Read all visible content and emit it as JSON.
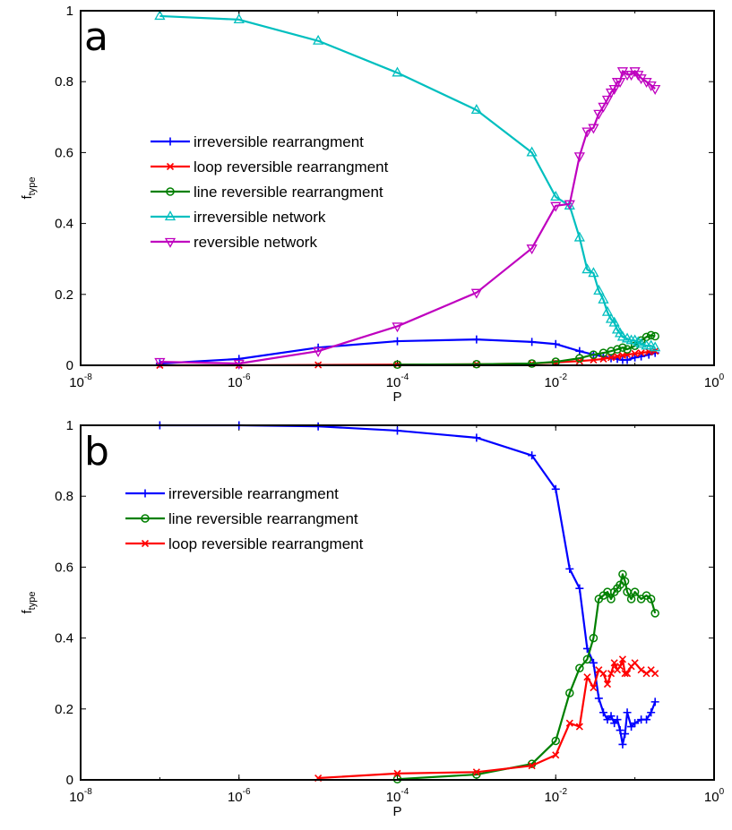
{
  "chart_data": [
    {
      "type": "line",
      "panel_label": "a",
      "xlabel": "P",
      "ylabel": "f",
      "ylabel_sub": "type",
      "xscale": "log",
      "xlim": [
        1e-08,
        1
      ],
      "ylim": [
        0,
        1
      ],
      "x_ticks": [
        {
          "base": "10",
          "exp": "-8"
        },
        {
          "base": "10",
          "exp": "-6"
        },
        {
          "base": "10",
          "exp": "-4"
        },
        {
          "base": "10",
          "exp": "-2"
        },
        {
          "base": "10",
          "exp": "0"
        }
      ],
      "y_ticks": [
        "0",
        "0.2",
        "0.4",
        "0.6",
        "0.8",
        "1"
      ],
      "legend_position": "center-left",
      "series": [
        {
          "name": "irreversible rearrangment",
          "color": "#0000ff",
          "marker": "plus",
          "x": [
            1e-07,
            1e-06,
            1e-05,
            0.0001,
            0.001,
            0.005,
            0.01,
            0.02,
            0.03,
            0.04,
            0.05,
            0.06,
            0.07,
            0.08,
            0.1,
            0.12,
            0.15,
            0.18
          ],
          "y": [
            0.005,
            0.018,
            0.05,
            0.068,
            0.073,
            0.066,
            0.06,
            0.04,
            0.03,
            0.025,
            0.02,
            0.018,
            0.015,
            0.015,
            0.022,
            0.025,
            0.03,
            0.035
          ]
        },
        {
          "name": "loop reversible rearrangment",
          "color": "#ff0000",
          "marker": "x",
          "x": [
            1e-07,
            1e-06,
            1e-05,
            0.0001,
            0.001,
            0.005,
            0.01,
            0.02,
            0.03,
            0.04,
            0.05,
            0.06,
            0.07,
            0.08,
            0.1,
            0.12,
            0.15,
            0.18
          ],
          "y": [
            0.0,
            0.0,
            0.001,
            0.002,
            0.003,
            0.005,
            0.008,
            0.012,
            0.015,
            0.018,
            0.022,
            0.025,
            0.028,
            0.03,
            0.033,
            0.035,
            0.038,
            0.04
          ]
        },
        {
          "name": "line reversible rearrangment",
          "color": "#008000",
          "marker": "circle",
          "x": [
            0.0001,
            0.001,
            0.005,
            0.01,
            0.02,
            0.03,
            0.04,
            0.05,
            0.06,
            0.07,
            0.08,
            0.1,
            0.12,
            0.14,
            0.16,
            0.18
          ],
          "y": [
            0.002,
            0.003,
            0.005,
            0.01,
            0.02,
            0.03,
            0.035,
            0.04,
            0.045,
            0.05,
            0.045,
            0.055,
            0.07,
            0.08,
            0.085,
            0.082
          ]
        },
        {
          "name": "irreversible network",
          "color": "#00bfbf",
          "marker": "triangle-up",
          "x": [
            1e-07,
            1e-06,
            1e-05,
            0.0001,
            0.001,
            0.005,
            0.01,
            0.015,
            0.02,
            0.025,
            0.03,
            0.035,
            0.04,
            0.045,
            0.05,
            0.055,
            0.06,
            0.065,
            0.07,
            0.08,
            0.09,
            0.1,
            0.11,
            0.12,
            0.14,
            0.16,
            0.18
          ],
          "y": [
            0.985,
            0.975,
            0.915,
            0.825,
            0.72,
            0.6,
            0.475,
            0.45,
            0.36,
            0.27,
            0.26,
            0.21,
            0.185,
            0.15,
            0.13,
            0.12,
            0.1,
            0.09,
            0.08,
            0.075,
            0.07,
            0.07,
            0.065,
            0.06,
            0.055,
            0.055,
            0.05
          ]
        },
        {
          "name": "reversible network",
          "color": "#bf00bf",
          "marker": "triangle-down",
          "x": [
            1e-07,
            1e-06,
            1e-05,
            0.0001,
            0.001,
            0.005,
            0.01,
            0.015,
            0.02,
            0.025,
            0.03,
            0.035,
            0.04,
            0.045,
            0.05,
            0.055,
            0.06,
            0.065,
            0.07,
            0.08,
            0.09,
            0.1,
            0.11,
            0.12,
            0.14,
            0.16,
            0.18
          ],
          "y": [
            0.01,
            0.005,
            0.04,
            0.11,
            0.205,
            0.33,
            0.45,
            0.455,
            0.59,
            0.66,
            0.67,
            0.71,
            0.73,
            0.75,
            0.77,
            0.78,
            0.8,
            0.8,
            0.83,
            0.82,
            0.82,
            0.83,
            0.82,
            0.81,
            0.8,
            0.79,
            0.78
          ]
        }
      ]
    },
    {
      "type": "line",
      "panel_label": "b",
      "xlabel": "P",
      "ylabel": "f",
      "ylabel_sub": "type",
      "xscale": "log",
      "xlim": [
        1e-08,
        1
      ],
      "ylim": [
        0,
        1
      ],
      "x_ticks": [
        {
          "base": "10",
          "exp": "-8"
        },
        {
          "base": "10",
          "exp": "-6"
        },
        {
          "base": "10",
          "exp": "-4"
        },
        {
          "base": "10",
          "exp": "-2"
        },
        {
          "base": "10",
          "exp": "0"
        }
      ],
      "y_ticks": [
        "0",
        "0.2",
        "0.4",
        "0.6",
        "0.8",
        "1"
      ],
      "legend_position": "top-left",
      "series": [
        {
          "name": "irreversible rearrangment",
          "color": "#0000ff",
          "marker": "plus",
          "x": [
            1e-07,
            1e-06,
            1e-05,
            0.0001,
            0.001,
            0.005,
            0.01,
            0.015,
            0.02,
            0.025,
            0.03,
            0.035,
            0.04,
            0.045,
            0.05,
            0.055,
            0.06,
            0.065,
            0.07,
            0.075,
            0.08,
            0.09,
            0.1,
            0.12,
            0.14,
            0.16,
            0.18
          ],
          "y": [
            1.0,
            1.0,
            0.997,
            0.985,
            0.965,
            0.915,
            0.82,
            0.595,
            0.54,
            0.37,
            0.33,
            0.23,
            0.19,
            0.17,
            0.18,
            0.16,
            0.17,
            0.14,
            0.1,
            0.13,
            0.19,
            0.15,
            0.16,
            0.17,
            0.17,
            0.19,
            0.22
          ]
        },
        {
          "name": "line reversible rearrangment",
          "color": "#008000",
          "marker": "circle",
          "x": [
            0.0001,
            0.001,
            0.005,
            0.01,
            0.015,
            0.02,
            0.025,
            0.03,
            0.035,
            0.04,
            0.045,
            0.05,
            0.055,
            0.06,
            0.065,
            0.07,
            0.075,
            0.08,
            0.09,
            0.1,
            0.12,
            0.14,
            0.16,
            0.18
          ],
          "y": [
            0.002,
            0.015,
            0.045,
            0.11,
            0.245,
            0.315,
            0.34,
            0.4,
            0.51,
            0.52,
            0.53,
            0.51,
            0.53,
            0.54,
            0.55,
            0.58,
            0.56,
            0.53,
            0.51,
            0.53,
            0.51,
            0.52,
            0.51,
            0.47
          ]
        },
        {
          "name": "loop reversible rearrangment",
          "color": "#ff0000",
          "marker": "x",
          "x": [
            1e-05,
            0.0001,
            0.001,
            0.005,
            0.01,
            0.015,
            0.02,
            0.025,
            0.03,
            0.035,
            0.04,
            0.045,
            0.05,
            0.055,
            0.06,
            0.065,
            0.07,
            0.075,
            0.08,
            0.09,
            0.1,
            0.12,
            0.14,
            0.16,
            0.18
          ],
          "y": [
            0.005,
            0.018,
            0.022,
            0.04,
            0.07,
            0.16,
            0.15,
            0.29,
            0.26,
            0.31,
            0.3,
            0.27,
            0.3,
            0.33,
            0.31,
            0.32,
            0.34,
            0.3,
            0.3,
            0.32,
            0.33,
            0.31,
            0.3,
            0.31,
            0.3
          ]
        }
      ]
    }
  ]
}
